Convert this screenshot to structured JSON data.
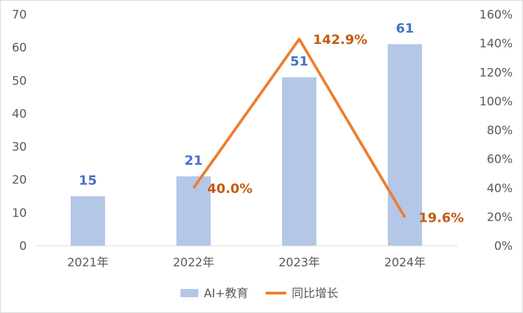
{
  "chart_data": {
    "type": "bar",
    "categories": [
      "2021年",
      "2022年",
      "2023年",
      "2024年"
    ],
    "series": [
      {
        "name": "AI+教育",
        "type": "bar",
        "axis": "left",
        "values": [
          15,
          21,
          51,
          61
        ],
        "labels": [
          "15",
          "21",
          "51",
          "61"
        ],
        "color": "#b4c7e7",
        "label_color": "#4472c4"
      },
      {
        "name": "同比增长",
        "type": "line",
        "axis": "right",
        "values": [
          null,
          40.0,
          142.9,
          19.6
        ],
        "labels": [
          "",
          "40.0%",
          "142.9%",
          "19.6%"
        ],
        "color": "#ed7d31",
        "label_color": "#c55a11"
      }
    ],
    "y_left": {
      "ylim": [
        0,
        70
      ],
      "ticks": [
        "0",
        "10",
        "20",
        "30",
        "40",
        "50",
        "60",
        "70"
      ]
    },
    "y_right": {
      "ylim": [
        0,
        160
      ],
      "ticks": [
        "0%",
        "20%",
        "40%",
        "60%",
        "80%",
        "100%",
        "120%",
        "140%",
        "160%"
      ]
    },
    "title": "",
    "xlabel": "",
    "ylabel": "",
    "grid": false,
    "legend_position": "bottom"
  }
}
